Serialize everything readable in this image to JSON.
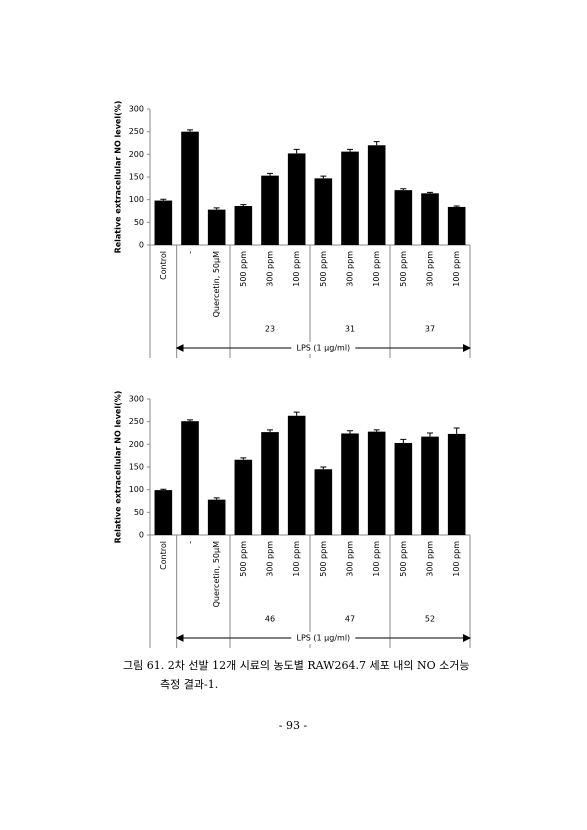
{
  "chart_data": [
    {
      "type": "bar",
      "ylabel": "Relative extracellular NO level(%)",
      "categories": [
        "Control",
        "-",
        "Quercetin, 50μM",
        "500 ppm",
        "300 ppm",
        "100 ppm",
        "500 ppm",
        "300 ppm",
        "100 ppm",
        "500 ppm",
        "300 ppm",
        "100 ppm"
      ],
      "values": [
        98,
        250,
        78,
        86,
        153,
        202,
        147,
        206,
        220,
        121,
        114,
        84
      ],
      "errors": [
        3,
        4,
        4,
        3,
        5,
        9,
        5,
        5,
        8,
        3,
        2,
        2
      ],
      "color": "#000000",
      "ylim": [
        0,
        300
      ],
      "yticks": [
        0,
        50,
        100,
        150,
        200,
        250,
        300
      ],
      "group_labels": [
        "23",
        "31",
        "37"
      ],
      "annotation": "LPS (1 μg/ml)"
    },
    {
      "type": "bar",
      "ylabel": "Relative extracellular NO level(%)",
      "categories": [
        "Control",
        "-",
        "Quercetin, 50μM",
        "500 ppm",
        "300 ppm",
        "100 ppm",
        "500 ppm",
        "300 ppm",
        "100 ppm",
        "500 ppm",
        "300 ppm",
        "100 ppm"
      ],
      "values": [
        99,
        251,
        78,
        166,
        227,
        263,
        145,
        224,
        228,
        203,
        217,
        223
      ],
      "errors": [
        2,
        3,
        4,
        4,
        5,
        8,
        5,
        6,
        4,
        8,
        8,
        13
      ],
      "color": "#000000",
      "ylim": [
        0,
        300
      ],
      "yticks": [
        0,
        50,
        100,
        150,
        200,
        250,
        300
      ],
      "group_labels": [
        "46",
        "47",
        "52"
      ],
      "annotation": "LPS (1 μg/ml)"
    }
  ],
  "caption": [
    "그림 61. 2차 선발 12개 시료의 농도별 RAW264.7 세포 내의 NO 소거능",
    "측정 결과-1."
  ],
  "page_number": "- 93 -"
}
